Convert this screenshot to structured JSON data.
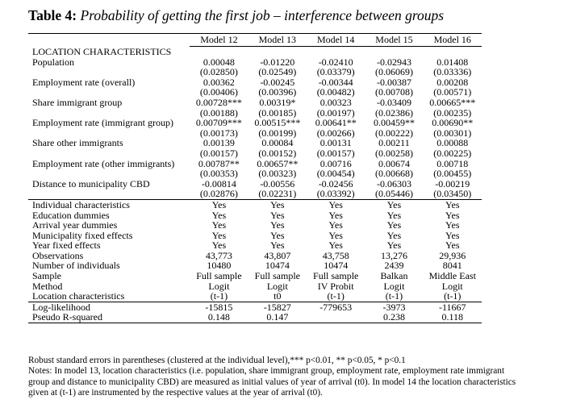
{
  "title": {
    "label": "Table 4:",
    "text": "Probability of getting the first job – interference between groups"
  },
  "columns": [
    "Model 12",
    "Model 13",
    "Model 14",
    "Model 15",
    "Model 16"
  ],
  "section": "LOCATION CHARACTERISTICS",
  "coef_rows": [
    {
      "label": "Population",
      "coef": [
        "0.00048",
        "-0.01220",
        "-0.02410",
        "-0.02943",
        "0.01408"
      ],
      "se": [
        "(0.02850)",
        "(0.02549)",
        "(0.03379)",
        "(0.06069)",
        "(0.03336)"
      ]
    },
    {
      "label": "Employment rate (overall)",
      "coef": [
        "0.00362",
        "-0.00245",
        "-0.00344",
        "-0.00387",
        "0.00208"
      ],
      "se": [
        "(0.00406)",
        "(0.00396)",
        "(0.00482)",
        "(0.00708)",
        "(0.00571)"
      ]
    },
    {
      "label": "Share immigrant group",
      "coef": [
        "0.00728***",
        "0.00319*",
        "0.00323",
        "-0.03409",
        "0.00665***"
      ],
      "se": [
        "(0.00188)",
        "(0.00185)",
        "(0.00197)",
        "(0.02386)",
        "(0.00235)"
      ]
    },
    {
      "label": "Employment rate (immigrant group)",
      "coef": [
        "0.00709***",
        "0.00515***",
        "0.00641**",
        "0.00459**",
        "0.00690**"
      ],
      "se": [
        "(0.00173)",
        "(0.00199)",
        "(0.00266)",
        "(0.00222)",
        "(0.00301)"
      ]
    },
    {
      "label": "Share other immigrants",
      "coef": [
        "0.00139",
        "0.00084",
        "0.00131",
        "0.00211",
        "0.00088"
      ],
      "se": [
        "(0.00157)",
        "(0.00152)",
        "(0.00157)",
        "(0.00258)",
        "(0.00225)"
      ]
    },
    {
      "label": "Employment rate (other immigrants)",
      "coef": [
        "0.00787**",
        "0.00657**",
        "0.00716",
        "0.00674",
        "0.00718"
      ],
      "se": [
        "(0.00353)",
        "(0.00323)",
        "(0.00454)",
        "(0.00668)",
        "(0.00455)"
      ]
    },
    {
      "label": "Distance to municipality CBD",
      "coef": [
        "-0.00814",
        "-0.00556",
        "-0.02456",
        "-0.06303",
        "-0.00219"
      ],
      "se": [
        "(0.02876)",
        "(0.02231)",
        "(0.03392)",
        "(0.05446)",
        "(0.03450)"
      ]
    }
  ],
  "spec_rows": [
    {
      "label": "Individual characteristics",
      "values": [
        "Yes",
        "Yes",
        "Yes",
        "Yes",
        "Yes"
      ]
    },
    {
      "label": "Education dummies",
      "values": [
        "Yes",
        "Yes",
        "Yes",
        "Yes",
        "Yes"
      ]
    },
    {
      "label": "Arrival year dummies",
      "values": [
        "Yes",
        "Yes",
        "Yes",
        "Yes",
        "Yes"
      ]
    },
    {
      "label": "Municipality fixed effects",
      "values": [
        "Yes",
        "Yes",
        "Yes",
        "Yes",
        "Yes"
      ]
    },
    {
      "label": "Year fixed effects",
      "values": [
        "Yes",
        "Yes",
        "Yes",
        "Yes",
        "Yes"
      ]
    },
    {
      "label": "Observations",
      "values": [
        "43,773",
        "43,807",
        "43,758",
        "13,276",
        "29,936"
      ]
    },
    {
      "label": "Number of individuals",
      "values": [
        "10480",
        "10474",
        "10474",
        "2439",
        "8041"
      ]
    },
    {
      "label": "Sample",
      "values": [
        "Full sample",
        "Full sample",
        "Full sample",
        "Balkan",
        "Middle East"
      ]
    },
    {
      "label": "Method",
      "values": [
        "Logit",
        "Logit",
        "IV Probit",
        "Logit",
        "Logit"
      ]
    },
    {
      "label": "Location characteristics",
      "values": [
        "(t-1)",
        "t0",
        "(t-1)",
        "(t-1)",
        "(t-1)"
      ]
    }
  ],
  "fit_rows": [
    {
      "label": "Log-likelihood",
      "values": [
        "-15815",
        "-15827",
        "-779653",
        "-3973",
        "-11667"
      ]
    },
    {
      "label": "Pseudo R-squared",
      "values": [
        "0.148",
        "0.147",
        "",
        "0.238",
        "0.118"
      ]
    }
  ],
  "notes": [
    "Robust standard errors in parentheses (clustered at the individual level),*** p<0.01, ** p<0.05, * p<0.1",
    "Notes: In model 13, location characteristics (i.e. population, share immigrant group, employment rate, employment rate immigrant",
    "group and distance to municipality CBD) are measured as initial values of year of arrival (t0). In model 14 the location characteristics",
    "given at (t-1) are instrumented by the respective values at the year of arrival (t0)."
  ]
}
